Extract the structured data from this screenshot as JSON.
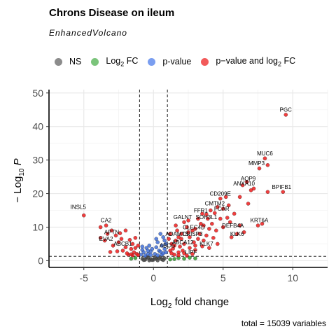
{
  "title": "Chrons Disease on ileum",
  "subtitle": "EnhancedVolcano",
  "caption": "total = 15039 variables",
  "legend": [
    {
      "key": "ns",
      "label": "NS",
      "sub": "",
      "rest": "",
      "color": "#8c8c8c"
    },
    {
      "key": "fc",
      "label": "Log",
      "sub": "2",
      "rest": " FC",
      "color": "#7bc47b"
    },
    {
      "key": "p",
      "label": "p-value",
      "sub": "",
      "rest": "",
      "color": "#7a9ef0"
    },
    {
      "key": "both",
      "label": "p−value and log",
      "sub": "2",
      "rest": " FC",
      "color": "#f25a5a"
    }
  ],
  "chart_data": {
    "type": "scatter",
    "title": "Chrons Disease on ileum",
    "xlabel_main": "Log",
    "xlabel_sub": "2",
    "xlabel_rest": " fold change",
    "ylabel_main": "− Log",
    "ylabel_sub": "10",
    "ylabel_rest": " P",
    "xlim": [
      -7.5,
      12.5
    ],
    "ylim": [
      -2,
      51
    ],
    "xticks": [
      -5,
      0,
      5,
      10
    ],
    "yticks": [
      0,
      10,
      20,
      30,
      40,
      50
    ],
    "fc_cutoff": [
      -1,
      1
    ],
    "p_cutoff_neglog10": 1.3,
    "grid": true,
    "colors": {
      "ns": "#4a4a4a",
      "fc": "#2e9e2e",
      "p": "#3f6fd8",
      "both": "#ee1c1c"
    },
    "labeled_genes": [
      {
        "label": "PGC",
        "x": 9.5,
        "y": 44
      },
      {
        "label": "MUC6",
        "x": 8.0,
        "y": 31
      },
      {
        "label": "MMP3",
        "x": 7.4,
        "y": 28
      },
      {
        "label": "AQP9",
        "x": 6.8,
        "y": 23.5
      },
      {
        "label": "ANXA10",
        "x": 6.5,
        "y": 22
      },
      {
        "label": "BPIFB1",
        "x": 9.2,
        "y": 21
      },
      {
        "label": "CD209E",
        "x": 4.8,
        "y": 19
      },
      {
        "label": "CMTM2",
        "x": 4.4,
        "y": 16
      },
      {
        "label": "FCAR",
        "x": 4.9,
        "y": 14.5
      },
      {
        "label": "FFR1",
        "x": 3.4,
        "y": 14
      },
      {
        "label": "SOH3L1",
        "x": 3.8,
        "y": 12
      },
      {
        "label": "GALNT",
        "x": 2.1,
        "y": 12
      },
      {
        "label": "DEFB4A",
        "x": 5.7,
        "y": 9.5
      },
      {
        "label": "KRT6A",
        "x": 7.6,
        "y": 11
      },
      {
        "label": "KLK6",
        "x": 6.0,
        "y": 7
      },
      {
        "label": "CLEC4D",
        "x": 2.9,
        "y": 9.0
      },
      {
        "label": "ADAMTS",
        "x": 1.7,
        "y": 7.0
      },
      {
        "label": "CRISP3",
        "x": 2.8,
        "y": 7.0
      },
      {
        "label": "ABCA12",
        "x": 2.1,
        "y": 4.5
      },
      {
        "label": "KLK7",
        "x": 3.8,
        "y": 4.0
      },
      {
        "label": "ABCG",
        "x": 1.0,
        "y": 3.5
      },
      {
        "label": "LIPF",
        "x": 2.7,
        "y": 1.5
      },
      {
        "label": "INSL5",
        "x": -5.4,
        "y": 15
      },
      {
        "label": "CA2",
        "x": -3.4,
        "y": 11
      },
      {
        "label": "APTN",
        "x": -3.0,
        "y": 7.5
      },
      {
        "label": "EVA2",
        "x": -3.4,
        "y": 5.5
      },
      {
        "label": "ABCB1",
        "x": -2.2,
        "y": 4.0
      }
    ],
    "points_both": [
      [
        9.5,
        43.5
      ],
      [
        8.0,
        30.5
      ],
      [
        8.2,
        28.5
      ],
      [
        7.6,
        27.5
      ],
      [
        6.7,
        23.5
      ],
      [
        6.4,
        22.5
      ],
      [
        7.0,
        21.0
      ],
      [
        9.3,
        20.5
      ],
      [
        8.2,
        20.5
      ],
      [
        7.2,
        21.5
      ],
      [
        5.2,
        19.0
      ],
      [
        4.8,
        18.5
      ],
      [
        4.6,
        16.0
      ],
      [
        5.0,
        15.5
      ],
      [
        4.4,
        14.2
      ],
      [
        3.8,
        13.8
      ],
      [
        3.5,
        14.0
      ],
      [
        3.9,
        12.5
      ],
      [
        3.2,
        12.5
      ],
      [
        2.5,
        12.0
      ],
      [
        2.2,
        11.5
      ],
      [
        4.2,
        11.0
      ],
      [
        5.5,
        11.5
      ],
      [
        6.2,
        10.5
      ],
      [
        7.8,
        11.0
      ],
      [
        7.5,
        10.5
      ],
      [
        6.5,
        8.5
      ],
      [
        6.0,
        8.0
      ],
      [
        5.6,
        7.0
      ],
      [
        3.0,
        9.5
      ],
      [
        2.8,
        9.0
      ],
      [
        2.5,
        8.5
      ],
      [
        2.0,
        8.0
      ],
      [
        1.8,
        7.0
      ],
      [
        2.6,
        7.0
      ],
      [
        3.2,
        6.5
      ],
      [
        3.6,
        6.0
      ],
      [
        2.2,
        5.0
      ],
      [
        1.9,
        4.2
      ],
      [
        3.5,
        4.3
      ],
      [
        4.0,
        3.8
      ],
      [
        1.4,
        3.6
      ],
      [
        1.2,
        3.0
      ],
      [
        2.8,
        2.0
      ],
      [
        2.4,
        1.5
      ],
      [
        1.5,
        1.8
      ],
      [
        1.8,
        2.5
      ],
      [
        2.1,
        3.0
      ],
      [
        3.0,
        3.2
      ],
      [
        1.3,
        5.0
      ],
      [
        1.6,
        6.0
      ],
      [
        2.9,
        5.5
      ],
      [
        3.3,
        8.0
      ],
      [
        4.5,
        9.0
      ],
      [
        5.0,
        10.0
      ],
      [
        4.8,
        12.5
      ],
      [
        4.1,
        15.0
      ],
      [
        5.4,
        16.5
      ],
      [
        3.6,
        10.5
      ],
      [
        2.4,
        10.0
      ],
      [
        1.7,
        9.0
      ],
      [
        1.2,
        8.0
      ],
      [
        1.1,
        6.5
      ],
      [
        1.5,
        4.5
      ],
      [
        2.0,
        6.5
      ],
      [
        3.8,
        7.5
      ],
      [
        4.3,
        6.8
      ],
      [
        4.6,
        5.0
      ],
      [
        3.0,
        4.5
      ],
      [
        2.6,
        3.8
      ],
      [
        1.8,
        1.6
      ],
      [
        1.3,
        2.2
      ],
      [
        2.2,
        2.2
      ],
      [
        6.2,
        19.0
      ],
      [
        6.8,
        17.0
      ],
      [
        5.8,
        14.0
      ],
      [
        5.3,
        12.8
      ],
      [
        4.0,
        9.5
      ],
      [
        3.4,
        11.0
      ],
      [
        1.6,
        10.5
      ],
      [
        -5.0,
        13.5
      ],
      [
        -3.4,
        10.5
      ],
      [
        -3.8,
        10.0
      ],
      [
        -3.0,
        9.0
      ],
      [
        -2.7,
        7.5
      ],
      [
        -3.5,
        6.0
      ],
      [
        -2.5,
        5.5
      ],
      [
        -2.0,
        4.0
      ],
      [
        -1.6,
        3.5
      ],
      [
        -2.2,
        3.0
      ],
      [
        -1.4,
        2.5
      ],
      [
        -1.2,
        2.0
      ],
      [
        -1.8,
        1.8
      ],
      [
        -2.9,
        4.5
      ],
      [
        -3.3,
        8.0
      ],
      [
        -2.3,
        6.5
      ],
      [
        -1.5,
        5.0
      ],
      [
        -1.1,
        4.5
      ],
      [
        -1.3,
        3.8
      ],
      [
        -2.6,
        2.8
      ],
      [
        -1.9,
        2.2
      ],
      [
        -1.5,
        1.6
      ],
      [
        -3.8,
        6.8
      ],
      [
        -2.0,
        9.0
      ],
      [
        -1.7,
        6.2
      ],
      [
        -1.1,
        1.7
      ],
      [
        -1.3,
        6.8
      ],
      [
        -2.4,
        8.2
      ],
      [
        -3.1,
        2.6
      ],
      [
        -1.6,
        1.9
      ]
    ],
    "points_p": [
      [
        0.5,
        8.0
      ],
      [
        0.7,
        7.0
      ],
      [
        0.8,
        6.0
      ],
      [
        0.3,
        5.5
      ],
      [
        0.9,
        5.0
      ],
      [
        0.6,
        4.5
      ],
      [
        0.2,
        4.0
      ],
      [
        0.8,
        3.5
      ],
      [
        0.4,
        3.0
      ],
      [
        0.9,
        2.5
      ],
      [
        0.1,
        2.0
      ],
      [
        0.6,
        1.8
      ],
      [
        -0.3,
        4.5
      ],
      [
        -0.5,
        3.8
      ],
      [
        -0.8,
        3.2
      ],
      [
        -0.2,
        2.8
      ],
      [
        -0.7,
        2.5
      ],
      [
        -0.4,
        2.0
      ],
      [
        -0.9,
        1.8
      ],
      [
        -0.6,
        1.5
      ],
      [
        0.3,
        1.6
      ],
      [
        -0.1,
        3.5
      ],
      [
        0.2,
        6.5
      ],
      [
        -0.8,
        4.2
      ],
      [
        0.7,
        2.2
      ],
      [
        0.5,
        2.7
      ],
      [
        -0.4,
        3.0
      ],
      [
        -0.2,
        1.7
      ]
    ],
    "points_fc": [
      [
        1.8,
        0.8
      ],
      [
        2.2,
        0.6
      ],
      [
        2.6,
        0.9
      ],
      [
        3.0,
        0.7
      ],
      [
        1.5,
        0.5
      ],
      [
        -1.3,
        0.8
      ],
      [
        -1.6,
        0.6
      ],
      [
        1.2,
        0.4
      ]
    ],
    "points_ns": [
      [
        0.0,
        0.3
      ],
      [
        0.2,
        0.6
      ],
      [
        -0.2,
        0.5
      ],
      [
        0.4,
        0.8
      ],
      [
        -0.4,
        0.9
      ],
      [
        0.6,
        0.4
      ],
      [
        -0.6,
        0.3
      ],
      [
        0.8,
        0.7
      ],
      [
        -0.8,
        0.6
      ],
      [
        0.1,
        1.0
      ],
      [
        -0.1,
        0.2
      ],
      [
        0.3,
        0.1
      ],
      [
        -0.3,
        0.1
      ],
      [
        0.5,
        1.1
      ],
      [
        -0.5,
        1.1
      ],
      [
        0.7,
        0.2
      ],
      [
        -0.7,
        0.2
      ]
    ]
  }
}
